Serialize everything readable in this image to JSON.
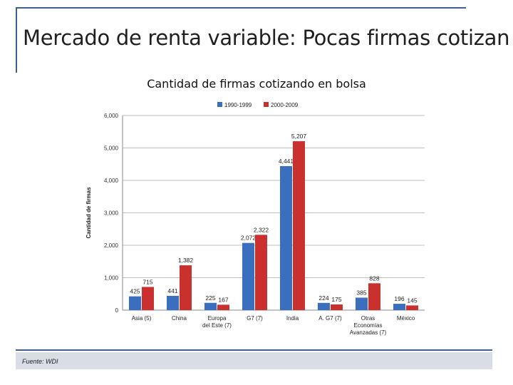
{
  "slide": {
    "title": "Mercado de renta variable: Pocas firmas cotizan",
    "source": "Fuente: WDI"
  },
  "chart_data": {
    "type": "bar",
    "title": "Cantidad de firmas cotizando en bolsa",
    "xlabel": "",
    "ylabel": "Cantidad de firmas",
    "ylim": [
      0,
      6000
    ],
    "yticks": [
      0,
      1000,
      2000,
      3000,
      4000,
      5000,
      6000
    ],
    "ytick_labels": [
      "0",
      "1,000",
      "2,000",
      "3,000",
      "4,000",
      "5,000",
      "6,000"
    ],
    "grid": true,
    "legend_position": "top",
    "categories": [
      "Asia (5)",
      "China",
      "Europa del Este (7)",
      "G7 (7)",
      "India",
      "A. G7 (7)",
      "Otras Economías Avanzadas (7)",
      "México"
    ],
    "category_lines": [
      [
        "Asia (5)"
      ],
      [
        "China"
      ],
      [
        "Europa",
        "del Este (7)"
      ],
      [
        "G7 (7)"
      ],
      [
        "India"
      ],
      [
        "A. G7 (7)"
      ],
      [
        "Otras",
        "Economías",
        "Avanzadas (7)"
      ],
      [
        "México"
      ]
    ],
    "series": [
      {
        "name": "1990-1999",
        "color": "#3a6fc0",
        "values": [
          425,
          441,
          225,
          2072,
          4441,
          224,
          385,
          196
        ],
        "labels": [
          "425",
          "441",
          "225",
          "2,072",
          "4,441",
          "224",
          "385",
          "196"
        ]
      },
      {
        "name": "2000-2009",
        "color": "#c9302e",
        "values": [
          715,
          1382,
          167,
          2322,
          5207,
          175,
          828,
          145
        ],
        "labels": [
          "715",
          "1,382",
          "167",
          "2,322",
          "5,207",
          "175",
          "828",
          "145"
        ]
      }
    ]
  }
}
